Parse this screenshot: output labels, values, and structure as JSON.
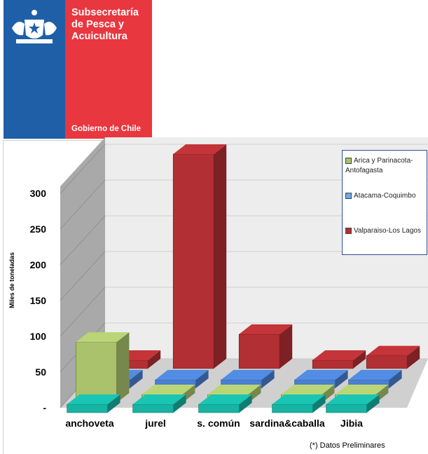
{
  "logo": {
    "line1": "Subsecretaría",
    "line2": "de Pesca y",
    "line3": "Acuicultura",
    "footer": "Gobierno de Chile"
  },
  "note": "(*) Datos Preliminares",
  "colors": {
    "series": [
      "#a9c26b",
      "#4a7fd0",
      "#b22f33",
      "#17b3a3"
    ],
    "logo_blue": "#1f5fa8",
    "logo_red": "#e8373f"
  },
  "chart_data": {
    "type": "bar",
    "title": "",
    "xlabel": "",
    "ylabel": "Miles de toneladas",
    "ylim": [
      0,
      300
    ],
    "yticks": [
      {
        "label": "-",
        "value": 0
      },
      {
        "label": "50",
        "value": 50
      },
      {
        "label": "100",
        "value": 100
      },
      {
        "label": "150",
        "value": 150
      },
      {
        "label": "200",
        "value": 200
      },
      {
        "label": "250",
        "value": 250
      },
      {
        "label": "300",
        "value": 300
      }
    ],
    "categories": [
      "anchoveta",
      "jurel",
      "s. común",
      "sardina&caballa",
      "Jibia"
    ],
    "series": [
      {
        "name": "Arica y Parinacota-Antofagasta",
        "values": [
          85,
          3,
          0,
          5,
          0
        ]
      },
      {
        "name": "Atacama-Coquimbo",
        "values": [
          3,
          0,
          0,
          0,
          0
        ]
      },
      {
        "name": "Valparaiso-Los Lagos",
        "values": [
          2,
          300,
          48,
          1,
          18
        ]
      },
      {
        "name": "",
        "values": [
          0,
          0,
          0,
          0,
          0
        ]
      }
    ],
    "legend_position": "top-right",
    "grid": true
  },
  "legend": [
    {
      "line1": "Arica y Parinacota-",
      "line2": "Antofagasta"
    },
    {
      "line1": "Atacama-Coquimbo",
      "line2": ""
    },
    {
      "line1": "Valparaiso-Los Lagos",
      "line2": ""
    }
  ]
}
